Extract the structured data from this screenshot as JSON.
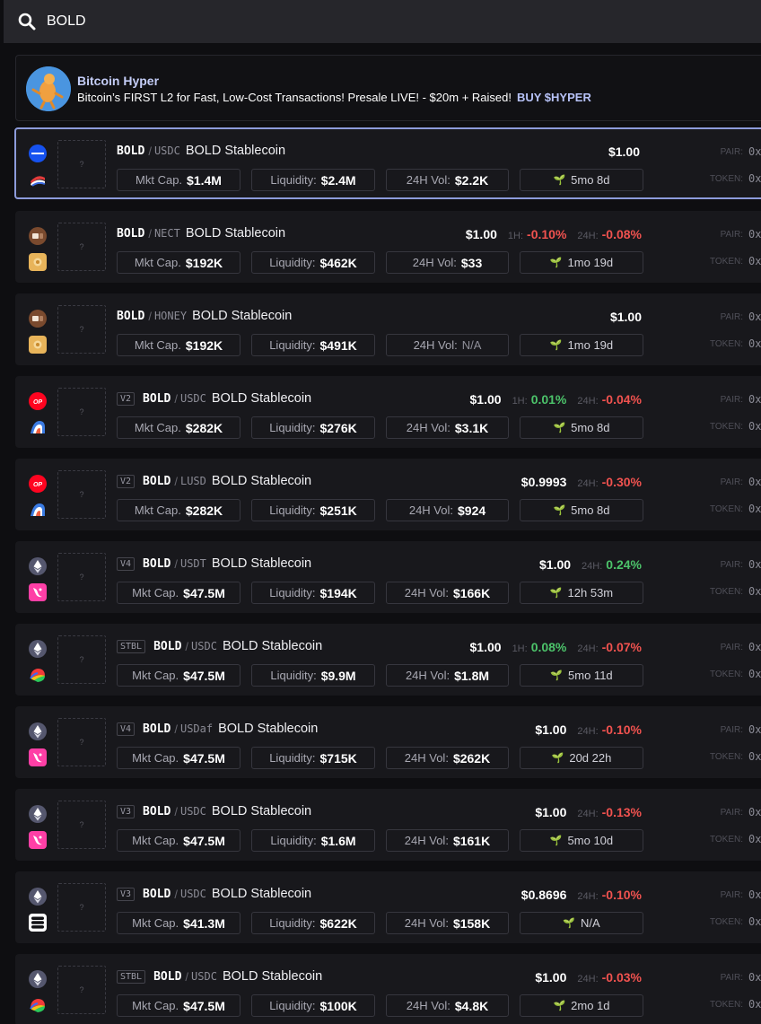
{
  "search": {
    "value": "BOLD",
    "icon": "search-icon"
  },
  "ad": {
    "title": "Bitcoin Hyper",
    "text": "Bitcoin’s FIRST L2 for Fast, Low-Cost Transactions! Presale LIVE! - $20m + Raised!",
    "cta": "BUY $HYPER"
  },
  "labels": {
    "mkt_cap": "Mkt Cap.",
    "liquidity": "Liquidity:",
    "vol": "24H Vol:",
    "pair": "PAIR:",
    "token": "TOKEN:",
    "addr": "0x",
    "sep": "/",
    "h1": "1H:",
    "h24": "24H:",
    "placeholder": "?"
  },
  "colors": {
    "positive": "#4cc36a",
    "negative": "#f0524f",
    "selected_border": "#8d9bdb"
  },
  "results": [
    {
      "chain": "base-chain-icon",
      "dex": "aerodrome-icon",
      "version": "",
      "base": "BOLD",
      "quote": "USDC",
      "name": "BOLD Stablecoin",
      "price": "$1.00",
      "h1": "",
      "h24": "",
      "mkt_cap": "$1.4M",
      "liquidity": "$2.4M",
      "vol": "$2.2K",
      "age": "5mo 8d",
      "selected": true
    },
    {
      "chain": "berachain-icon",
      "dex": "kodiak-icon",
      "version": "",
      "base": "BOLD",
      "quote": "NECT",
      "name": "BOLD Stablecoin",
      "price": "$1.00",
      "h1": "-0.10%",
      "h24": "-0.08%",
      "mkt_cap": "$192K",
      "liquidity": "$462K",
      "vol": "$33",
      "age": "1mo 19d"
    },
    {
      "chain": "berachain-icon",
      "dex": "kodiak-icon",
      "version": "",
      "base": "BOLD",
      "quote": "HONEY",
      "name": "BOLD Stablecoin",
      "price": "$1.00",
      "h1": "",
      "h24": "",
      "mkt_cap": "$192K",
      "liquidity": "$491K",
      "vol": "N/A",
      "age": "1mo 19d"
    },
    {
      "chain": "optimism-icon",
      "dex": "velodrome-icon",
      "version": "V2",
      "base": "BOLD",
      "quote": "USDC",
      "name": "BOLD Stablecoin",
      "price": "$1.00",
      "h1": "0.01%",
      "h24": "-0.04%",
      "mkt_cap": "$282K",
      "liquidity": "$276K",
      "vol": "$3.1K",
      "age": "5mo 8d"
    },
    {
      "chain": "optimism-icon",
      "dex": "velodrome-icon",
      "version": "V2",
      "base": "BOLD",
      "quote": "LUSD",
      "name": "BOLD Stablecoin",
      "price": "$0.9993",
      "h1": "",
      "h24": "-0.30%",
      "mkt_cap": "$282K",
      "liquidity": "$251K",
      "vol": "$924",
      "age": "5mo 8d"
    },
    {
      "chain": "ethereum-icon",
      "dex": "uniswap-icon",
      "version": "V4",
      "base": "BOLD",
      "quote": "USDT",
      "name": "BOLD Stablecoin",
      "price": "$1.00",
      "h1": "",
      "h24": "0.24%",
      "mkt_cap": "$47.5M",
      "liquidity": "$194K",
      "vol": "$166K",
      "age": "12h 53m"
    },
    {
      "chain": "ethereum-icon",
      "dex": "curve-icon",
      "version": "STBL",
      "base": "BOLD",
      "quote": "USDC",
      "name": "BOLD Stablecoin",
      "price": "$1.00",
      "h1": "0.08%",
      "h24": "-0.07%",
      "mkt_cap": "$47.5M",
      "liquidity": "$9.9M",
      "vol": "$1.8M",
      "age": "5mo 11d"
    },
    {
      "chain": "ethereum-icon",
      "dex": "uniswap-icon",
      "version": "V4",
      "base": "BOLD",
      "quote": "USDaf",
      "name": "BOLD Stablecoin",
      "price": "$1.00",
      "h1": "",
      "h24": "-0.10%",
      "mkt_cap": "$47.5M",
      "liquidity": "$715K",
      "vol": "$262K",
      "age": "20d 22h"
    },
    {
      "chain": "ethereum-icon",
      "dex": "uniswap-icon",
      "version": "V3",
      "base": "BOLD",
      "quote": "USDC",
      "name": "BOLD Stablecoin",
      "price": "$1.00",
      "h1": "",
      "h24": "-0.13%",
      "mkt_cap": "$47.5M",
      "liquidity": "$1.6M",
      "vol": "$161K",
      "age": "5mo 10d"
    },
    {
      "chain": "ethereum-icon",
      "dex": "stack-dex-icon",
      "version": "V3",
      "base": "BOLD",
      "quote": "USDC",
      "name": "BOLD Stablecoin",
      "price": "$0.8696",
      "h1": "",
      "h24": "-0.10%",
      "mkt_cap": "$41.3M",
      "liquidity": "$622K",
      "vol": "$158K",
      "age": "N/A"
    },
    {
      "chain": "ethereum-icon",
      "dex": "curve-icon",
      "version": "STBL",
      "base": "BOLD",
      "quote": "USDC",
      "name": "BOLD Stablecoin",
      "price": "$1.00",
      "h1": "",
      "h24": "-0.03%",
      "mkt_cap": "$47.5M",
      "liquidity": "$100K",
      "vol": "$4.8K",
      "age": "2mo 1d"
    }
  ]
}
